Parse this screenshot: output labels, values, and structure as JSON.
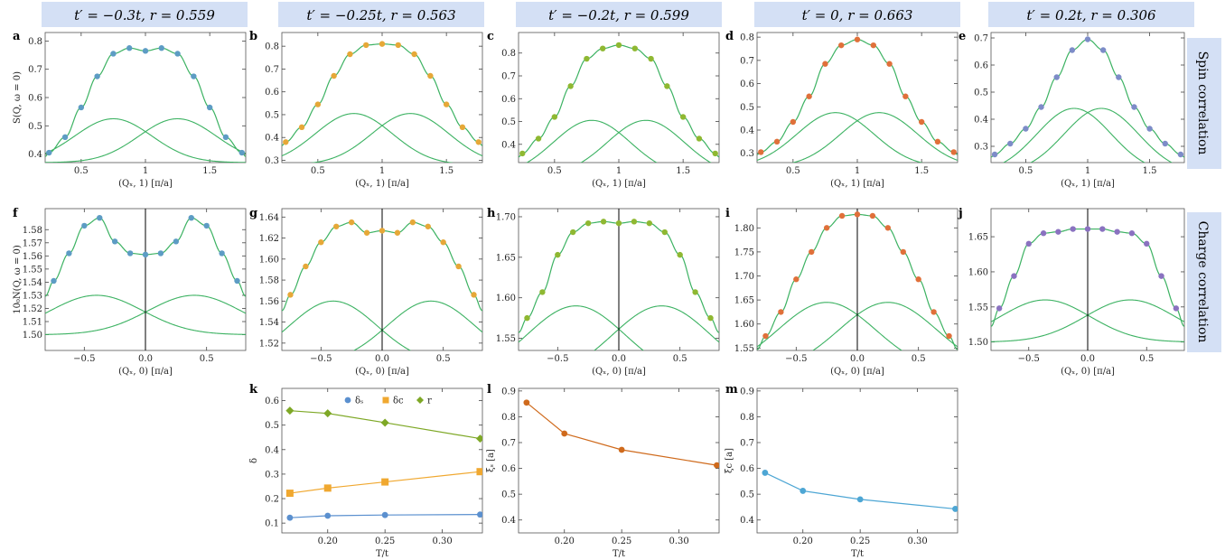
{
  "colors": {
    "fit": "#3cb262",
    "header_bg": "#d4e0f5",
    "blue": "#5b90cf",
    "orange": "#f0a830",
    "green_marker": "#7ea826",
    "rust": "#cf6a1c",
    "sky": "#4da6d4",
    "spin_points": [
      "#5d9cc4",
      "#e6a838",
      "#8fb832",
      "#e0703a",
      "#7d8cc8"
    ],
    "charge_points": [
      "#5d9cc4",
      "#e6a838",
      "#8fb832",
      "#e0703a",
      "#8a72c0"
    ]
  },
  "column_titles": [
    "t′ = −0.3t, r = 0.559",
    "t′ = −0.25t, r = 0.563",
    "t′ = −0.2t, r = 0.599",
    "t′ = 0, r = 0.663",
    "t′ = 0.2t, r = 0.306"
  ],
  "row_titles": [
    "Spin correlation",
    "Charge correlation"
  ],
  "chart_data": [
    {
      "panel": "a",
      "type": "scatter",
      "xlabel": "(Qₓ, 1) [π/a]",
      "ylabel": "S(Q, ω = 0)",
      "xlim": [
        0.22,
        1.78
      ],
      "ylim": [
        0.37,
        0.83
      ],
      "xticks": [
        0.5,
        1.0,
        1.5
      ],
      "yticks": [
        0.4,
        0.5,
        0.6,
        0.7,
        0.8
      ],
      "x": [
        0.25,
        0.375,
        0.5,
        0.625,
        0.75,
        0.875,
        1.0,
        1.125,
        1.25,
        1.375,
        1.5,
        1.625,
        1.75
      ],
      "y": [
        0.405,
        0.46,
        0.565,
        0.675,
        0.755,
        0.775,
        0.765,
        0.775,
        0.755,
        0.675,
        0.565,
        0.46,
        0.405
      ],
      "fit": {
        "kind": "pair",
        "A": 0.155,
        "B": 0.37,
        "w": 0.3,
        "c": 0.25
      }
    },
    {
      "panel": "b",
      "type": "scatter",
      "xlabel": "(Qₓ, 1) [π/a]",
      "ylabel": "",
      "xlim": [
        0.22,
        1.78
      ],
      "ylim": [
        0.29,
        0.86
      ],
      "xticks": [
        0.5,
        1.0,
        1.5
      ],
      "yticks": [
        0.3,
        0.4,
        0.5,
        0.6,
        0.7,
        0.8
      ],
      "x": [
        0.25,
        0.375,
        0.5,
        0.625,
        0.75,
        0.875,
        1.0,
        1.125,
        1.25,
        1.375,
        1.5,
        1.625,
        1.75
      ],
      "y": [
        0.38,
        0.445,
        0.545,
        0.67,
        0.765,
        0.805,
        0.81,
        0.805,
        0.765,
        0.67,
        0.545,
        0.445,
        0.38
      ],
      "fit": {
        "kind": "pair",
        "A": 0.225,
        "B": 0.28,
        "w": 0.3,
        "c": 0.22
      }
    },
    {
      "panel": "c",
      "type": "scatter",
      "xlabel": "(Qₓ, 1) [π/a]",
      "ylabel": "",
      "xlim": [
        0.22,
        1.78
      ],
      "ylim": [
        0.32,
        0.89
      ],
      "xticks": [
        0.5,
        1.0,
        1.5
      ],
      "yticks": [
        0.4,
        0.5,
        0.6,
        0.7,
        0.8
      ],
      "x": [
        0.25,
        0.375,
        0.5,
        0.625,
        0.75,
        0.875,
        1.0,
        1.125,
        1.25,
        1.375,
        1.5,
        1.625,
        1.75
      ],
      "y": [
        0.36,
        0.425,
        0.52,
        0.655,
        0.775,
        0.82,
        0.835,
        0.82,
        0.775,
        0.655,
        0.52,
        0.425,
        0.36
      ],
      "fit": {
        "kind": "pair",
        "A": 0.245,
        "B": 0.26,
        "w": 0.3,
        "c": 0.21
      }
    },
    {
      "panel": "d",
      "type": "scatter",
      "xlabel": "(Qₓ, 1) [π/a]",
      "ylabel": "",
      "xlim": [
        0.22,
        1.78
      ],
      "ylim": [
        0.26,
        0.82
      ],
      "xticks": [
        0.5,
        1.0,
        1.5
      ],
      "yticks": [
        0.3,
        0.4,
        0.5,
        0.6,
        0.7,
        0.8
      ],
      "x": [
        0.25,
        0.375,
        0.5,
        0.625,
        0.75,
        0.875,
        1.0,
        1.125,
        1.25,
        1.375,
        1.5,
        1.625,
        1.75
      ],
      "y": [
        0.305,
        0.35,
        0.435,
        0.545,
        0.685,
        0.765,
        0.79,
        0.765,
        0.685,
        0.545,
        0.435,
        0.35,
        0.305
      ],
      "fit": {
        "kind": "pair",
        "A": 0.235,
        "B": 0.24,
        "w": 0.3,
        "c": 0.17
      }
    },
    {
      "panel": "e",
      "type": "scatter",
      "xlabel": "(Qₓ, 1) [π/a]",
      "ylabel": "",
      "xlim": [
        0.22,
        1.78
      ],
      "ylim": [
        0.24,
        0.72
      ],
      "xticks": [
        0.5,
        1.0,
        1.5
      ],
      "yticks": [
        0.3,
        0.4,
        0.5,
        0.6,
        0.7
      ],
      "x": [
        0.25,
        0.375,
        0.5,
        0.625,
        0.75,
        0.875,
        1.0,
        1.125,
        1.25,
        1.375,
        1.5,
        1.625,
        1.75
      ],
      "y": [
        0.27,
        0.31,
        0.365,
        0.445,
        0.555,
        0.655,
        0.695,
        0.655,
        0.555,
        0.445,
        0.365,
        0.31,
        0.27
      ],
      "fit": {
        "kind": "pair",
        "A": 0.24,
        "B": 0.2,
        "w": 0.3,
        "c": 0.11
      }
    },
    {
      "panel": "f",
      "type": "scatter",
      "xlabel": "(Qₓ, 0) [π/a]",
      "ylabel": "10₀N(Q, ω = 0)",
      "xlim": [
        -0.82,
        0.82
      ],
      "ylim": [
        1.488,
        1.596
      ],
      "xticks": [
        -0.5,
        0.0,
        0.5
      ],
      "yticks": [
        1.5,
        1.51,
        1.52,
        1.53,
        1.54,
        1.55,
        1.56,
        1.57,
        1.58
      ],
      "x": [
        -0.75,
        -0.625,
        -0.5,
        -0.375,
        -0.25,
        -0.125,
        0.0,
        0.125,
        0.25,
        0.375,
        0.5,
        0.625,
        0.75
      ],
      "y": [
        1.541,
        1.562,
        1.583,
        1.589,
        1.571,
        1.562,
        1.561,
        1.562,
        1.571,
        1.589,
        1.583,
        1.562,
        1.541
      ],
      "fit": {
        "kind": "pair",
        "A": 0.03,
        "B": 1.5,
        "w": 0.38,
        "c": 0.4
      }
    },
    {
      "panel": "g",
      "type": "scatter",
      "xlabel": "(Qₓ, 0) [π/a]",
      "ylabel": "",
      "xlim": [
        -0.82,
        0.82
      ],
      "ylim": [
        1.513,
        1.648
      ],
      "xticks": [
        -0.5,
        0.0,
        0.5
      ],
      "yticks": [
        1.52,
        1.54,
        1.56,
        1.58,
        1.6,
        1.62,
        1.64
      ],
      "x": [
        -0.75,
        -0.625,
        -0.5,
        -0.375,
        -0.25,
        -0.125,
        0.0,
        0.125,
        0.25,
        0.375,
        0.5,
        0.625,
        0.75
      ],
      "y": [
        1.566,
        1.593,
        1.616,
        1.631,
        1.635,
        1.625,
        1.627,
        1.625,
        1.635,
        1.631,
        1.616,
        1.593,
        1.566
      ],
      "fit": {
        "kind": "pair",
        "A": 0.06,
        "B": 1.5,
        "w": 0.36,
        "c": 0.4
      }
    },
    {
      "panel": "h",
      "type": "scatter",
      "xlabel": "(Qₓ, 0) [π/a]",
      "ylabel": "",
      "xlim": [
        -0.82,
        0.82
      ],
      "ylim": [
        1.535,
        1.71
      ],
      "xticks": [
        -0.5,
        0.0,
        0.5
      ],
      "yticks": [
        1.55,
        1.6,
        1.65,
        1.7
      ],
      "x": [
        -0.75,
        -0.625,
        -0.5,
        -0.375,
        -0.25,
        -0.125,
        0.0,
        0.125,
        0.25,
        0.375,
        0.5,
        0.625,
        0.75
      ],
      "y": [
        1.575,
        1.607,
        1.653,
        1.681,
        1.692,
        1.694,
        1.692,
        1.694,
        1.692,
        1.681,
        1.653,
        1.607,
        1.575
      ],
      "fit": {
        "kind": "pair",
        "A": 0.09,
        "B": 1.5,
        "w": 0.4,
        "c": 0.35
      }
    },
    {
      "panel": "i",
      "type": "scatter",
      "xlabel": "(Qₓ, 0) [π/a]",
      "ylabel": "",
      "xlim": [
        -0.82,
        0.82
      ],
      "ylim": [
        1.545,
        1.84
      ],
      "xticks": [
        -0.5,
        0.0,
        0.5
      ],
      "yticks": [
        1.55,
        1.6,
        1.65,
        1.7,
        1.75,
        1.8
      ],
      "x": [
        -0.75,
        -0.625,
        -0.5,
        -0.375,
        -0.25,
        -0.125,
        0.0,
        0.125,
        0.25,
        0.375,
        0.5,
        0.625,
        0.75
      ],
      "y": [
        1.575,
        1.625,
        1.693,
        1.75,
        1.8,
        1.825,
        1.828,
        1.825,
        1.8,
        1.75,
        1.693,
        1.625,
        1.575
      ],
      "fit": {
        "kind": "pair",
        "A": 0.145,
        "B": 1.5,
        "w": 0.4,
        "c": 0.25
      }
    },
    {
      "panel": "j",
      "type": "scatter",
      "xlabel": "(Qₓ, 0) [π/a]",
      "ylabel": "",
      "xlim": [
        -0.82,
        0.82
      ],
      "ylim": [
        1.488,
        1.69
      ],
      "xticks": [
        -0.5,
        0.0,
        0.5
      ],
      "yticks": [
        1.5,
        1.55,
        1.6,
        1.65
      ],
      "x": [
        -0.75,
        -0.625,
        -0.5,
        -0.375,
        -0.25,
        -0.125,
        0.0,
        0.125,
        0.25,
        0.375,
        0.5,
        0.625,
        0.75
      ],
      "y": [
        1.548,
        1.594,
        1.64,
        1.655,
        1.657,
        1.661,
        1.661,
        1.661,
        1.657,
        1.655,
        1.64,
        1.594,
        1.548
      ],
      "fit": {
        "kind": "pair",
        "A": 0.06,
        "B": 1.5,
        "w": 0.38,
        "c": 0.36
      }
    },
    {
      "panel": "k",
      "type": "line",
      "xlabel": "T/t",
      "ylabel": "δ",
      "xlim": [
        0.16,
        0.335
      ],
      "ylim": [
        0.06,
        0.65
      ],
      "xticks": [
        0.2,
        0.25,
        0.3
      ],
      "yticks": [
        0.1,
        0.2,
        0.3,
        0.4,
        0.5,
        0.6
      ],
      "x": [
        0.167,
        0.2,
        0.25,
        0.333
      ],
      "series": [
        {
          "name": "δₛ",
          "marker": "circle",
          "values": [
            0.122,
            0.13,
            0.133,
            0.135
          ]
        },
        {
          "name": "δc",
          "marker": "square",
          "values": [
            0.222,
            0.243,
            0.268,
            0.31
          ]
        },
        {
          "name": "r",
          "marker": "diamond",
          "values": [
            0.559,
            0.548,
            0.51,
            0.445
          ]
        }
      ],
      "legend": "top-center"
    },
    {
      "panel": "l",
      "type": "line",
      "xlabel": "T/t",
      "ylabel": "ξₛ [a]",
      "xlim": [
        0.16,
        0.335
      ],
      "ylim": [
        0.35,
        0.91
      ],
      "xticks": [
        0.2,
        0.25,
        0.3
      ],
      "yticks": [
        0.4,
        0.5,
        0.6,
        0.7,
        0.8,
        0.9
      ],
      "x": [
        0.167,
        0.2,
        0.25,
        0.333
      ],
      "series": [
        {
          "values": [
            0.855,
            0.735,
            0.672,
            0.612
          ]
        }
      ]
    },
    {
      "panel": "m",
      "type": "line",
      "xlabel": "T/t",
      "ylabel": "ξc [a]",
      "xlim": [
        0.16,
        0.335
      ],
      "ylim": [
        0.35,
        0.91
      ],
      "xticks": [
        0.2,
        0.25,
        0.3
      ],
      "yticks": [
        0.4,
        0.5,
        0.6,
        0.7,
        0.8,
        0.9
      ],
      "x": [
        0.167,
        0.2,
        0.25,
        0.333
      ],
      "series": [
        {
          "values": [
            0.583,
            0.513,
            0.48,
            0.443
          ]
        }
      ]
    }
  ]
}
